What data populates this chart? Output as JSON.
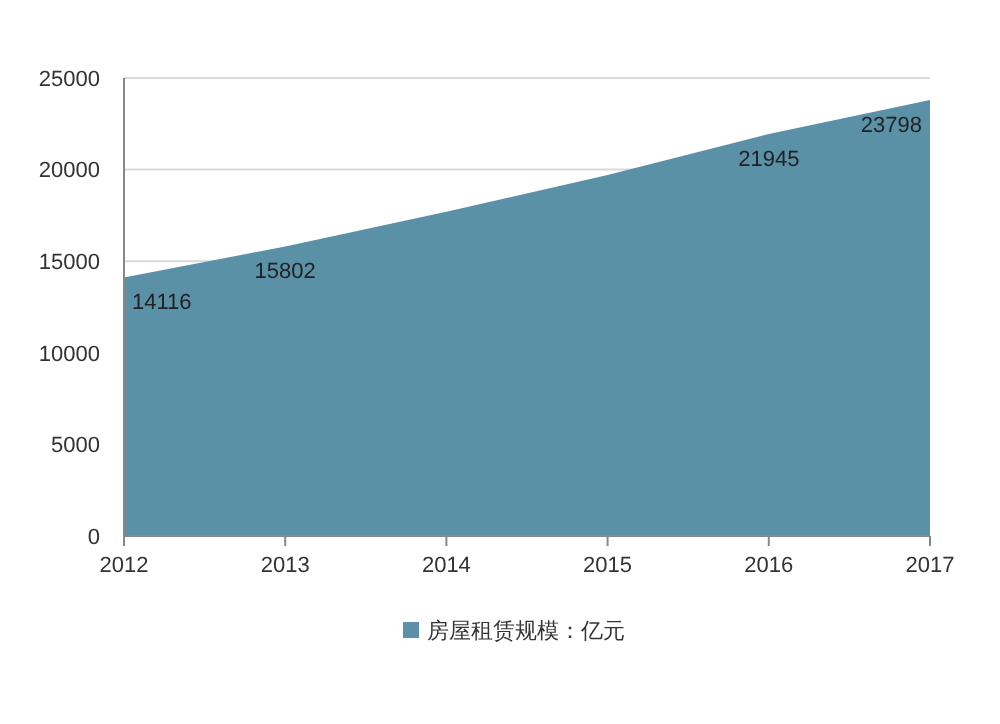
{
  "chart_data": {
    "type": "area",
    "categories": [
      "2012",
      "2013",
      "2014",
      "2015",
      "2016",
      "2017"
    ],
    "series": [
      {
        "name": "房屋租赁规模：亿元",
        "color": "#5b91a6",
        "values": [
          14116,
          15802,
          17700,
          19700,
          21945,
          23798
        ],
        "value_labels": [
          "14116",
          "15802",
          null,
          null,
          "21945",
          "23798"
        ]
      }
    ],
    "ylim": [
      0,
      25000
    ],
    "yticks": [
      0,
      5000,
      10000,
      15000,
      20000,
      25000
    ],
    "grid": "y",
    "legend": "bottom"
  }
}
